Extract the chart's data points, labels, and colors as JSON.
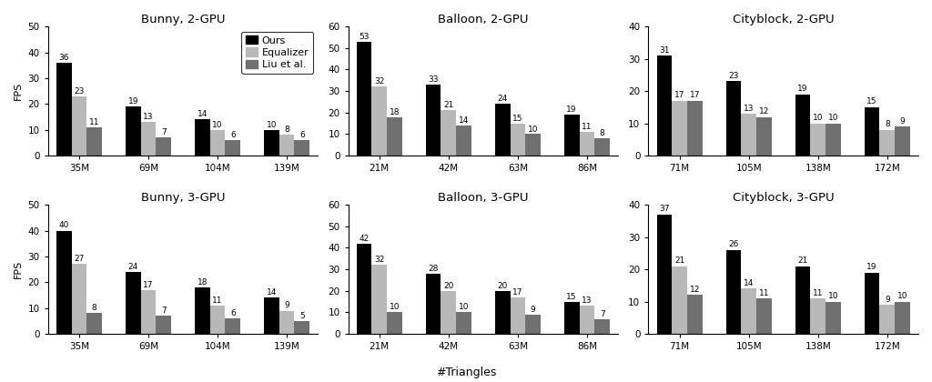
{
  "subplots": [
    {
      "title": "Bunny, 2-GPU",
      "categories": [
        "35M",
        "69M",
        "104M",
        "139M"
      ],
      "ylim": [
        0,
        50
      ],
      "yticks": [
        0,
        10,
        20,
        30,
        40,
        50
      ],
      "ours": [
        36,
        19,
        14,
        10
      ],
      "equalizer": [
        23,
        13,
        10,
        8
      ],
      "liu": [
        11,
        7,
        6,
        6
      ],
      "show_legend": true,
      "row": 0,
      "col": 0
    },
    {
      "title": "Balloon, 2-GPU",
      "categories": [
        "21M",
        "42M",
        "63M",
        "86M"
      ],
      "ylim": [
        0,
        60
      ],
      "yticks": [
        0,
        10,
        20,
        30,
        40,
        50,
        60
      ],
      "ours": [
        53,
        33,
        24,
        19
      ],
      "equalizer": [
        32,
        21,
        15,
        11
      ],
      "liu": [
        18,
        14,
        10,
        8
      ],
      "show_legend": false,
      "row": 0,
      "col": 1
    },
    {
      "title": "Cityblock, 2-GPU",
      "categories": [
        "71M",
        "105M",
        "138M",
        "172M"
      ],
      "ylim": [
        0,
        40
      ],
      "yticks": [
        0,
        10,
        20,
        30,
        40
      ],
      "ours": [
        31,
        23,
        19,
        15
      ],
      "equalizer": [
        17,
        13,
        10,
        8
      ],
      "liu": [
        17,
        12,
        10,
        9
      ],
      "show_legend": false,
      "row": 0,
      "col": 2
    },
    {
      "title": "Bunny, 3-GPU",
      "categories": [
        "35M",
        "69M",
        "104M",
        "139M"
      ],
      "ylim": [
        0,
        50
      ],
      "yticks": [
        0,
        10,
        20,
        30,
        40,
        50
      ],
      "ours": [
        40,
        24,
        18,
        14
      ],
      "equalizer": [
        27,
        17,
        11,
        9
      ],
      "liu": [
        8,
        7,
        6,
        5
      ],
      "show_legend": false,
      "row": 1,
      "col": 0
    },
    {
      "title": "Balloon, 3-GPU",
      "categories": [
        "21M",
        "42M",
        "63M",
        "86M"
      ],
      "ylim": [
        0,
        60
      ],
      "yticks": [
        0,
        10,
        20,
        30,
        40,
        50,
        60
      ],
      "ours": [
        42,
        28,
        20,
        15
      ],
      "equalizer": [
        32,
        20,
        17,
        13
      ],
      "liu": [
        10,
        10,
        9,
        7
      ],
      "show_legend": false,
      "row": 1,
      "col": 1
    },
    {
      "title": "Cityblock, 3-GPU",
      "categories": [
        "71M",
        "105M",
        "138M",
        "172M"
      ],
      "ylim": [
        0,
        40
      ],
      "yticks": [
        0,
        10,
        20,
        30,
        40
      ],
      "ours": [
        37,
        26,
        21,
        19
      ],
      "equalizer": [
        21,
        14,
        11,
        9
      ],
      "liu": [
        12,
        11,
        10,
        10
      ],
      "show_legend": false,
      "row": 1,
      "col": 2
    }
  ],
  "color_ours": "#000000",
  "color_equalizer": "#b8b8b8",
  "color_liu": "#707070",
  "bar_width": 0.22,
  "ylabel": "FPS",
  "xlabel": "#Triangles",
  "legend_labels": [
    "Ours",
    "Equalizer",
    "Liu et al."
  ],
  "label_fontsize": 8,
  "title_fontsize": 9.5,
  "tick_fontsize": 7.5,
  "bar_label_fontsize": 6.5,
  "fig_width": 10.24,
  "fig_height": 4.2,
  "fig_dpi": 100
}
